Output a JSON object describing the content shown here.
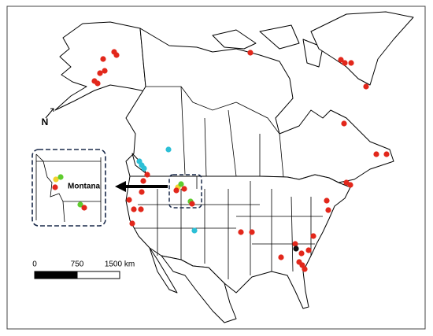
{
  "north_label": "N",
  "inset": {
    "label": "Montana"
  },
  "scale_bar": {
    "labels": [
      "0",
      "750",
      "1500 km"
    ]
  }
}
